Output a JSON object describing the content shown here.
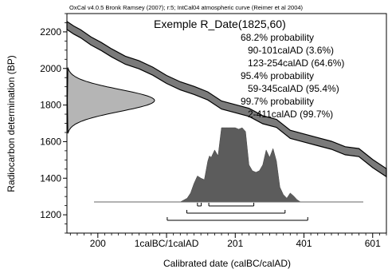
{
  "chart_data": {
    "type": "line",
    "header": "OxCal v4.0.5 Bronk Ramsey (2007); r:5; IntCal04 atmospheric curve (Reimer et al 2004)",
    "title": "Exemple R_Date(1825,60)",
    "xlabel": "Calibrated date (calBC/calAD)",
    "ylabel": "Radiocarbon determination (BP)",
    "xlim": [
      -290,
      640
    ],
    "ylim": [
      1100,
      2300
    ],
    "x_ticks": [
      {
        "value": -200,
        "label": "200"
      },
      {
        "value": 0,
        "label": "1calBC/1calAD"
      },
      {
        "value": 200,
        "label": "201"
      },
      {
        "value": 400,
        "label": "401"
      },
      {
        "value": 600,
        "label": "601"
      }
    ],
    "y_ticks": [
      {
        "value": 1200,
        "label": "1200"
      },
      {
        "value": 1400,
        "label": "1400"
      },
      {
        "value": 1600,
        "label": "1600"
      },
      {
        "value": 1800,
        "label": "1800"
      },
      {
        "value": 2000,
        "label": "2000"
      },
      {
        "value": 2200,
        "label": "2200"
      }
    ],
    "probability_ranges": [
      {
        "heading": "68.2% probability",
        "ranges": [
          "90-101calAD (3.6%)",
          "123-254calAD (64.6%)"
        ]
      },
      {
        "heading": "95.4% probability",
        "ranges": [
          "59-345calAD (95.4%)"
        ]
      },
      {
        "heading": "99.7% probability",
        "ranges": [
          "2-411calAD (99.7%)"
        ]
      }
    ],
    "measurement": {
      "mean_bp": 1825,
      "sigma_bp": 60
    },
    "calibration_curve": {
      "x": [
        -290,
        -270,
        -250,
        -220,
        -190,
        -160,
        -120,
        -80,
        -40,
        0,
        40,
        80,
        120,
        160,
        200,
        240,
        280,
        320,
        360,
        400,
        440,
        480,
        520,
        560,
        600,
        640
      ],
      "y": [
        2235,
        2210,
        2190,
        2150,
        2120,
        2085,
        2045,
        2020,
        1985,
        1940,
        1905,
        1880,
        1850,
        1800,
        1780,
        1760,
        1720,
        1700,
        1640,
        1620,
        1600,
        1580,
        1550,
        1540,
        1480,
        1430
      ],
      "error": 22
    },
    "calibrated_distribution": {
      "x": [
        40,
        60,
        70,
        80,
        90,
        100,
        110,
        120,
        125,
        130,
        140,
        150,
        160,
        170,
        180,
        190,
        200,
        210,
        220,
        230,
        240,
        250,
        260,
        270,
        280,
        290,
        300,
        310,
        320,
        330,
        340,
        350,
        360,
        370,
        380,
        390
      ],
      "density": [
        0,
        0.05,
        0.12,
        0.25,
        0.35,
        0.32,
        0.3,
        0.55,
        0.62,
        0.6,
        0.7,
        0.62,
        1.0,
        1.0,
        1.0,
        1.0,
        1.0,
        0.98,
        1.0,
        0.95,
        0.5,
        0.42,
        0.4,
        0.42,
        0.5,
        0.7,
        0.6,
        0.72,
        0.55,
        0.2,
        0.1,
        0.05,
        0.12,
        0.08,
        0.03,
        0
      ]
    },
    "range_bars": {
      "68.2%": [
        [
          90,
          101
        ],
        [
          123,
          254
        ]
      ],
      "95.4%": [
        [
          59,
          345
        ]
      ],
      "99.7%": [
        [
          2,
          411
        ]
      ]
    }
  }
}
